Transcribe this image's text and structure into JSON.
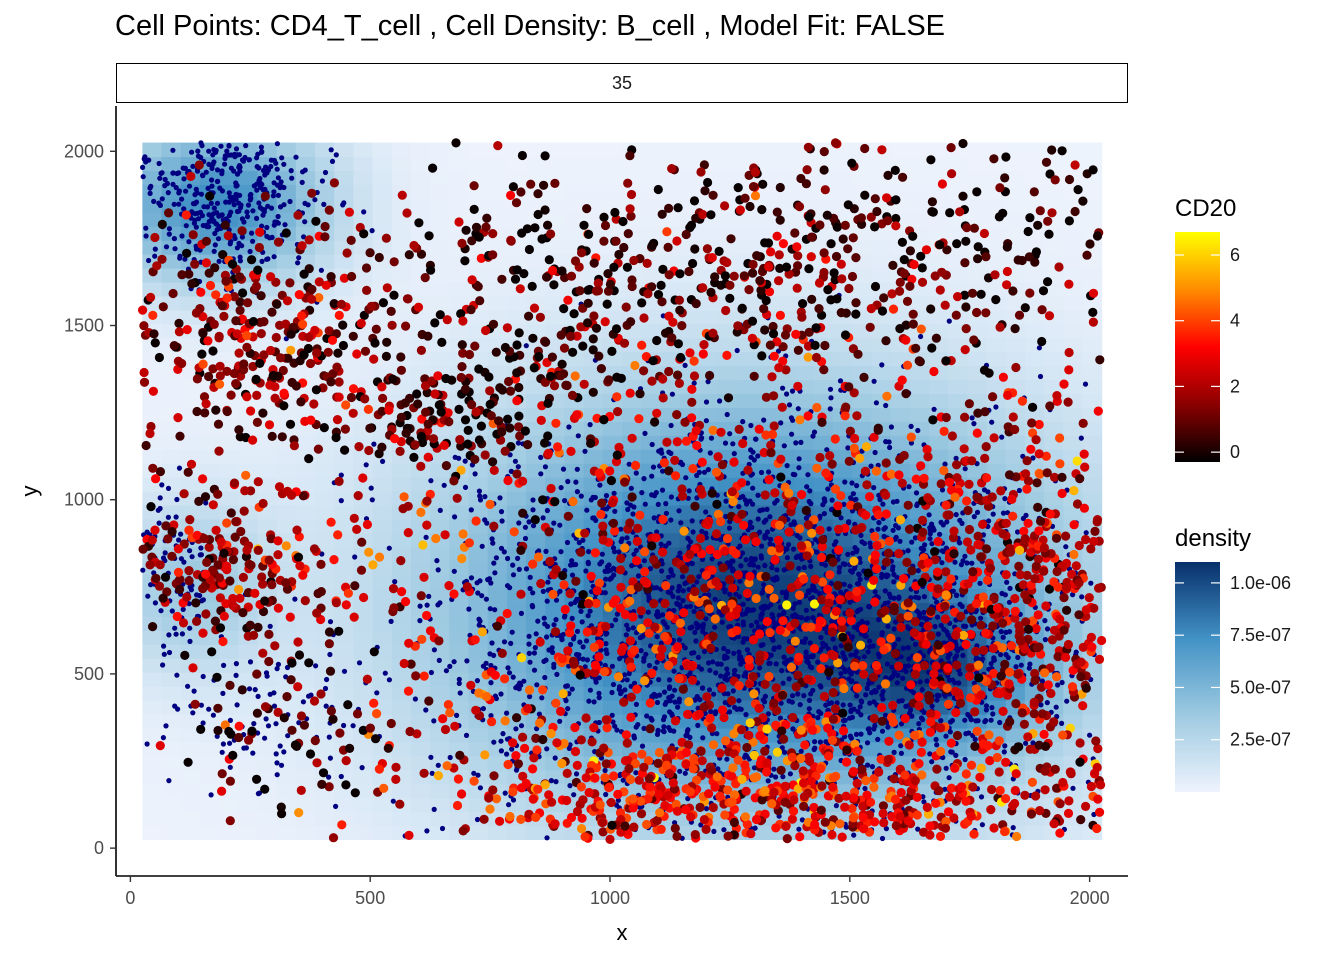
{
  "title": "Cell Points: CD4_T_cell , Cell Density: B_cell , Model Fit: FALSE",
  "facet_label": "35",
  "chart_data": {
    "type": "scatter",
    "xlabel": "x",
    "ylabel": "y",
    "xlim": [
      -30,
      2080
    ],
    "ylim": [
      -80,
      2130
    ],
    "x_ticks": [
      0,
      500,
      1000,
      1500,
      2000
    ],
    "y_ticks": [
      0,
      500,
      1000,
      1500,
      2000
    ],
    "grid": false,
    "density_extent": {
      "x": [
        25,
        2025
      ],
      "y": [
        25,
        2025
      ]
    },
    "density_field": {
      "description": "B_cell kernel density background (blue scale)",
      "peaks": [
        {
          "x": 1300,
          "y": 700,
          "spread_x": 450,
          "spread_y": 420,
          "value": 1.05e-06
        },
        {
          "x": 180,
          "y": 1850,
          "spread_x": 170,
          "spread_y": 170,
          "value": 7.5e-07
        },
        {
          "x": 120,
          "y": 750,
          "spread_x": 120,
          "spread_y": 180,
          "value": 3.5e-07
        },
        {
          "x": 1700,
          "y": 500,
          "spread_x": 150,
          "spread_y": 150,
          "value": 4e-07
        }
      ]
    },
    "point_groups": {
      "B_cell": {
        "color": "#000080",
        "size": "small"
      },
      "CD4_T_cell": {
        "color_by": "CD20",
        "size": "large"
      }
    },
    "point_clusters": [
      {
        "type": "B_cell",
        "x": 1300,
        "y": 650,
        "sx": 330,
        "sy": 310,
        "n": 2600
      },
      {
        "type": "B_cell",
        "x": 190,
        "y": 1870,
        "sx": 110,
        "sy": 110,
        "n": 420
      },
      {
        "type": "B_cell",
        "x": 90,
        "y": 780,
        "sx": 45,
        "sy": 110,
        "n": 110
      },
      {
        "type": "B_cell",
        "x": 250,
        "y": 380,
        "sx": 130,
        "sy": 110,
        "n": 90
      },
      {
        "type": "B_cell",
        "x": 1680,
        "y": 520,
        "sx": 120,
        "sy": 140,
        "n": 200
      },
      {
        "type": "CD4_T_cell",
        "x": 1300,
        "y": 650,
        "sx": 430,
        "sy": 420,
        "n": 1300,
        "cd20_mean": 2.8
      },
      {
        "type": "CD4_T_cell",
        "x": 1350,
        "y": 150,
        "sx": 380,
        "sy": 80,
        "n": 500,
        "cd20_mean": 3.0
      },
      {
        "type": "CD4_T_cell",
        "x": 1450,
        "y": 1700,
        "sx": 400,
        "sy": 180,
        "n": 500,
        "cd20_mean": 0.6
      },
      {
        "type": "CD4_T_cell",
        "x": 850,
        "y": 1500,
        "sx": 250,
        "sy": 260,
        "n": 250,
        "cd20_mean": 0.4
      },
      {
        "type": "CD4_T_cell",
        "x": 250,
        "y": 1450,
        "sx": 160,
        "sy": 180,
        "n": 350,
        "cd20_mean": 1.4
      },
      {
        "type": "CD4_T_cell",
        "x": 200,
        "y": 800,
        "sx": 140,
        "sy": 110,
        "n": 220,
        "cd20_mean": 1.6
      },
      {
        "type": "CD4_T_cell",
        "x": 1850,
        "y": 700,
        "sx": 140,
        "sy": 320,
        "n": 450,
        "cd20_mean": 2.2
      },
      {
        "type": "CD4_T_cell",
        "x": 300,
        "y": 350,
        "sx": 130,
        "sy": 120,
        "n": 70,
        "cd20_mean": 0.5
      },
      {
        "type": "CD4_T_cell",
        "x": 650,
        "y": 1250,
        "sx": 120,
        "sy": 90,
        "n": 120,
        "cd20_mean": 0.3
      }
    ],
    "legend": [
      {
        "title": "CD20",
        "type": "colorbar",
        "range": [
          -0.3,
          6.7
        ],
        "ticks": [
          0,
          2,
          4,
          6
        ],
        "tick_labels": [
          "0",
          "2",
          "4",
          "6"
        ],
        "colors": [
          "#000000",
          "#8b0000",
          "#ff0000",
          "#ff8c00",
          "#ffff00"
        ]
      },
      {
        "title": "density",
        "type": "colorbar",
        "range": [
          0,
          1.1e-06
        ],
        "ticks": [
          2.5e-07,
          5e-07,
          7.5e-07,
          1e-06
        ],
        "tick_labels": [
          "2.5e-07",
          "5.0e-07",
          "7.5e-07",
          "1.0e-06"
        ],
        "colors": [
          "#eef3fd",
          "#9ecae1",
          "#4292c6",
          "#08306b"
        ]
      }
    ]
  }
}
